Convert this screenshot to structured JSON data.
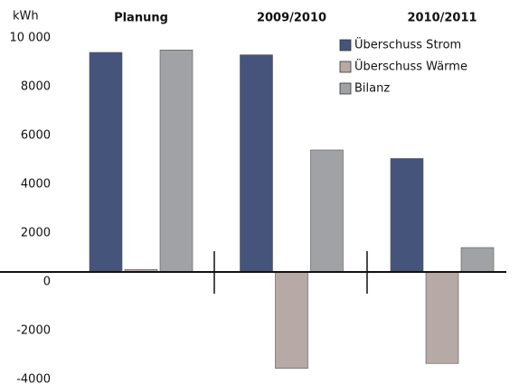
{
  "chart_data": {
    "type": "bar",
    "y_label": "kWh",
    "categories": [
      "Planung",
      "2009/2010",
      "2010/2011"
    ],
    "series": [
      {
        "name": "Überschuss Strom",
        "color": "#44547a",
        "values": [
          9000,
          8900,
          4650
        ]
      },
      {
        "name": "Überschuss Wärme",
        "color": "#b6a9a6",
        "values": [
          100,
          -3950,
          -3750
        ]
      },
      {
        "name": "Bilanz",
        "color": "#a0a2a5",
        "values": [
          9100,
          5000,
          1000
        ]
      }
    ],
    "ylim": [
      -4000,
      10000
    ],
    "yticks": [
      -4000,
      -2000,
      0,
      2000,
      4000,
      6000,
      8000,
      {
        "value": 10000,
        "label": "10 000"
      }
    ],
    "legend": "upper right"
  }
}
